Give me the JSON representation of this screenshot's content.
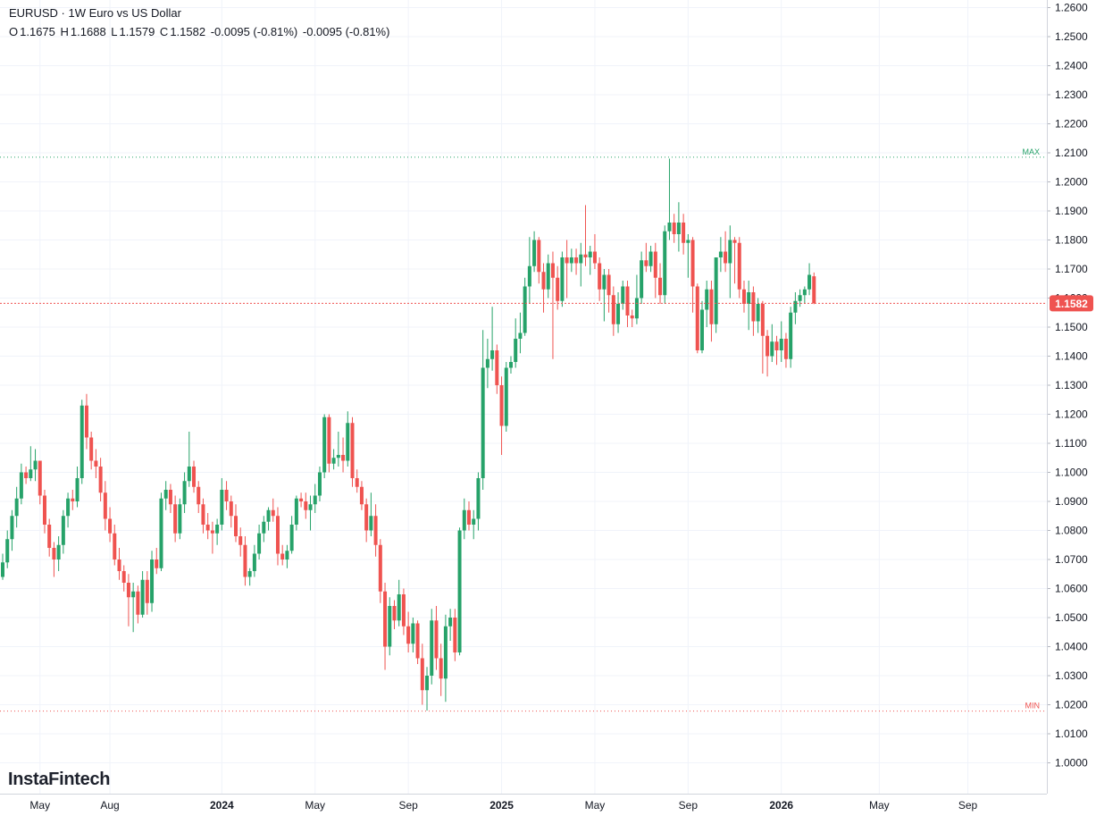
{
  "header": {
    "symbol": "EURUSD",
    "separator": "·",
    "description": "1W Euro vs US Dollar",
    "ohlc": {
      "o_label": "O",
      "o_value": "1.1675",
      "h_label": "H",
      "h_value": "1.1688",
      "l_label": "L",
      "l_value": "1.1579",
      "c_label": "C",
      "c_value": "1.1582",
      "change": "-0.0095 (-0.81%)",
      "change2": "-0.0095 (-0.81%)"
    }
  },
  "logo": {
    "text": "InstaFintech"
  },
  "colors": {
    "up": "#26a269",
    "down": "#ef5350",
    "grid": "#f0f3fa",
    "max_line": "#26a269",
    "min_line": "#ef5350",
    "last_price": "#ef5350",
    "text": "#131722"
  },
  "chart_data": {
    "type": "candlestick",
    "title": "EURUSD · 1W Euro vs US Dollar",
    "y_axis": {
      "ticks": [
        "1.2600",
        "1.2500",
        "1.2400",
        "1.2300",
        "1.2200",
        "1.2100",
        "1.2000",
        "1.1900",
        "1.1800",
        "1.1700",
        "1.1600",
        "1.1500",
        "1.1400",
        "1.1300",
        "1.1200",
        "1.1100",
        "1.1000",
        "1.0900",
        "1.0800",
        "1.0700",
        "1.0600",
        "1.0500",
        "1.0400",
        "1.0300",
        "1.0200",
        "1.0100",
        "1.0000"
      ],
      "range": [
        0.992,
        1.2625
      ]
    },
    "x_axis": {
      "labels": [
        "May",
        "Aug",
        "2024",
        "May",
        "Sep",
        "2025",
        "May",
        "Sep",
        "2026",
        "May",
        "Sep"
      ],
      "bold_labels": [
        "2024",
        "2025",
        "2026"
      ],
      "label_bar_index": [
        8,
        23,
        47,
        67,
        87,
        107,
        127,
        147,
        167,
        188,
        207
      ]
    },
    "markers": {
      "max": {
        "label": "MAX",
        "value": 1.2085
      },
      "min": {
        "label": "MIN",
        "value": 1.0178
      }
    },
    "last_price": {
      "label": "1.1582",
      "value": 1.1582
    },
    "candles": [
      [
        1.064,
        1.072,
        1.063,
        1.069
      ],
      [
        1.069,
        1.08,
        1.067,
        1.077
      ],
      [
        1.077,
        1.087,
        1.073,
        1.085
      ],
      [
        1.085,
        1.095,
        1.081,
        1.091
      ],
      [
        1.091,
        1.103,
        1.089,
        1.1
      ],
      [
        1.1,
        1.102,
        1.096,
        1.098
      ],
      [
        1.098,
        1.109,
        1.097,
        1.101
      ],
      [
        1.101,
        1.108,
        1.097,
        1.104
      ],
      [
        1.104,
        1.104,
        1.089,
        1.092
      ],
      [
        1.092,
        1.094,
        1.079,
        1.082
      ],
      [
        1.082,
        1.084,
        1.071,
        1.074
      ],
      [
        1.074,
        1.076,
        1.064,
        1.07
      ],
      [
        1.07,
        1.078,
        1.066,
        1.075
      ],
      [
        1.075,
        1.087,
        1.072,
        1.085
      ],
      [
        1.085,
        1.093,
        1.081,
        1.091
      ],
      [
        1.091,
        1.094,
        1.087,
        1.09
      ],
      [
        1.09,
        1.102,
        1.088,
        1.098
      ],
      [
        1.098,
        1.125,
        1.096,
        1.123
      ],
      [
        1.123,
        1.127,
        1.108,
        1.112
      ],
      [
        1.112,
        1.114,
        1.101,
        1.104
      ],
      [
        1.104,
        1.108,
        1.098,
        1.102
      ],
      [
        1.102,
        1.105,
        1.09,
        1.093
      ],
      [
        1.093,
        1.097,
        1.08,
        1.084
      ],
      [
        1.084,
        1.088,
        1.076,
        1.079
      ],
      [
        1.079,
        1.082,
        1.068,
        1.07
      ],
      [
        1.07,
        1.074,
        1.063,
        1.066
      ],
      [
        1.066,
        1.068,
        1.059,
        1.062
      ],
      [
        1.062,
        1.065,
        1.047,
        1.057
      ],
      [
        1.057,
        1.062,
        1.045,
        1.059
      ],
      [
        1.059,
        1.061,
        1.048,
        1.051
      ],
      [
        1.051,
        1.066,
        1.05,
        1.063
      ],
      [
        1.063,
        1.066,
        1.051,
        1.055
      ],
      [
        1.055,
        1.073,
        1.052,
        1.07
      ],
      [
        1.07,
        1.074,
        1.065,
        1.067
      ],
      [
        1.067,
        1.093,
        1.066,
        1.091
      ],
      [
        1.091,
        1.097,
        1.087,
        1.094
      ],
      [
        1.094,
        1.096,
        1.086,
        1.089
      ],
      [
        1.089,
        1.092,
        1.076,
        1.079
      ],
      [
        1.079,
        1.091,
        1.077,
        1.089
      ],
      [
        1.089,
        1.1,
        1.086,
        1.097
      ],
      [
        1.097,
        1.114,
        1.095,
        1.102
      ],
      [
        1.102,
        1.104,
        1.093,
        1.095
      ],
      [
        1.095,
        1.097,
        1.086,
        1.089
      ],
      [
        1.089,
        1.091,
        1.079,
        1.082
      ],
      [
        1.082,
        1.086,
        1.077,
        1.08
      ],
      [
        1.08,
        1.083,
        1.072,
        1.079
      ],
      [
        1.079,
        1.084,
        1.075,
        1.082
      ],
      [
        1.082,
        1.098,
        1.08,
        1.094
      ],
      [
        1.094,
        1.097,
        1.087,
        1.09
      ],
      [
        1.09,
        1.092,
        1.081,
        1.085
      ],
      [
        1.085,
        1.089,
        1.076,
        1.078
      ],
      [
        1.078,
        1.081,
        1.071,
        1.075
      ],
      [
        1.075,
        1.078,
        1.061,
        1.064
      ],
      [
        1.064,
        1.067,
        1.061,
        1.066
      ],
      [
        1.066,
        1.075,
        1.064,
        1.072
      ],
      [
        1.072,
        1.082,
        1.07,
        1.079
      ],
      [
        1.079,
        1.085,
        1.076,
        1.083
      ],
      [
        1.083,
        1.088,
        1.08,
        1.087
      ],
      [
        1.087,
        1.091,
        1.083,
        1.085
      ],
      [
        1.085,
        1.088,
        1.068,
        1.072
      ],
      [
        1.072,
        1.075,
        1.068,
        1.07
      ],
      [
        1.07,
        1.075,
        1.067,
        1.073
      ],
      [
        1.073,
        1.085,
        1.072,
        1.082
      ],
      [
        1.082,
        1.092,
        1.08,
        1.091
      ],
      [
        1.091,
        1.093,
        1.088,
        1.09
      ],
      [
        1.09,
        1.093,
        1.084,
        1.087
      ],
      [
        1.087,
        1.092,
        1.08,
        1.089
      ],
      [
        1.089,
        1.096,
        1.086,
        1.092
      ],
      [
        1.092,
        1.102,
        1.09,
        1.1
      ],
      [
        1.1,
        1.12,
        1.098,
        1.119
      ],
      [
        1.119,
        1.12,
        1.1,
        1.103
      ],
      [
        1.103,
        1.108,
        1.101,
        1.105
      ],
      [
        1.105,
        1.114,
        1.102,
        1.106
      ],
      [
        1.106,
        1.112,
        1.1,
        1.104
      ],
      [
        1.104,
        1.121,
        1.102,
        1.117
      ],
      [
        1.117,
        1.119,
        1.095,
        1.098
      ],
      [
        1.098,
        1.101,
        1.093,
        1.095
      ],
      [
        1.095,
        1.097,
        1.087,
        1.089
      ],
      [
        1.089,
        1.091,
        1.076,
        1.08
      ],
      [
        1.08,
        1.093,
        1.078,
        1.085
      ],
      [
        1.085,
        1.089,
        1.071,
        1.075
      ],
      [
        1.075,
        1.077,
        1.055,
        1.059
      ],
      [
        1.059,
        1.062,
        1.032,
        1.04
      ],
      [
        1.04,
        1.057,
        1.037,
        1.054
      ],
      [
        1.054,
        1.056,
        1.046,
        1.049
      ],
      [
        1.049,
        1.063,
        1.047,
        1.058
      ],
      [
        1.058,
        1.06,
        1.044,
        1.047
      ],
      [
        1.047,
        1.052,
        1.038,
        1.041
      ],
      [
        1.041,
        1.05,
        1.038,
        1.048
      ],
      [
        1.048,
        1.049,
        1.034,
        1.036
      ],
      [
        1.036,
        1.041,
        1.02,
        1.025
      ],
      [
        1.025,
        1.033,
        1.018,
        1.03
      ],
      [
        1.03,
        1.053,
        1.027,
        1.049
      ],
      [
        1.049,
        1.054,
        1.032,
        1.036
      ],
      [
        1.036,
        1.041,
        1.023,
        1.029
      ],
      [
        1.029,
        1.051,
        1.021,
        1.047
      ],
      [
        1.047,
        1.053,
        1.042,
        1.05
      ],
      [
        1.05,
        1.053,
        1.035,
        1.038
      ],
      [
        1.038,
        1.081,
        1.037,
        1.08
      ],
      [
        1.08,
        1.091,
        1.077,
        1.087
      ],
      [
        1.087,
        1.09,
        1.08,
        1.082
      ],
      [
        1.082,
        1.087,
        1.077,
        1.084
      ],
      [
        1.084,
        1.1,
        1.08,
        1.098
      ],
      [
        1.098,
        1.149,
        1.094,
        1.136
      ],
      [
        1.136,
        1.146,
        1.129,
        1.139
      ],
      [
        1.139,
        1.157,
        1.135,
        1.142
      ],
      [
        1.142,
        1.144,
        1.127,
        1.13
      ],
      [
        1.13,
        1.133,
        1.106,
        1.116
      ],
      [
        1.116,
        1.138,
        1.114,
        1.136
      ],
      [
        1.136,
        1.14,
        1.134,
        1.138
      ],
      [
        1.138,
        1.153,
        1.136,
        1.146
      ],
      [
        1.146,
        1.155,
        1.141,
        1.148
      ],
      [
        1.148,
        1.167,
        1.147,
        1.164
      ],
      [
        1.164,
        1.181,
        1.158,
        1.171
      ],
      [
        1.171,
        1.183,
        1.169,
        1.18
      ],
      [
        1.18,
        1.181,
        1.165,
        1.169
      ],
      [
        1.169,
        1.172,
        1.155,
        1.163
      ],
      [
        1.163,
        1.175,
        1.16,
        1.172
      ],
      [
        1.172,
        1.176,
        1.139,
        1.167
      ],
      [
        1.167,
        1.171,
        1.156,
        1.159
      ],
      [
        1.159,
        1.176,
        1.157,
        1.174
      ],
      [
        1.174,
        1.18,
        1.16,
        1.172
      ],
      [
        1.172,
        1.177,
        1.169,
        1.174
      ],
      [
        1.174,
        1.177,
        1.168,
        1.172
      ],
      [
        1.172,
        1.179,
        1.164,
        1.175
      ],
      [
        1.175,
        1.192,
        1.171,
        1.174
      ],
      [
        1.174,
        1.178,
        1.168,
        1.176
      ],
      [
        1.176,
        1.182,
        1.17,
        1.172
      ],
      [
        1.172,
        1.174,
        1.159,
        1.163
      ],
      [
        1.163,
        1.17,
        1.152,
        1.168
      ],
      [
        1.168,
        1.17,
        1.155,
        1.161
      ],
      [
        1.161,
        1.164,
        1.147,
        1.151
      ],
      [
        1.151,
        1.162,
        1.148,
        1.158
      ],
      [
        1.158,
        1.166,
        1.156,
        1.164
      ],
      [
        1.164,
        1.166,
        1.15,
        1.154
      ],
      [
        1.154,
        1.156,
        1.15,
        1.153
      ],
      [
        1.153,
        1.168,
        1.151,
        1.16
      ],
      [
        1.16,
        1.176,
        1.158,
        1.173
      ],
      [
        1.173,
        1.179,
        1.169,
        1.171
      ],
      [
        1.171,
        1.178,
        1.169,
        1.176
      ],
      [
        1.176,
        1.179,
        1.16,
        1.167
      ],
      [
        1.167,
        1.172,
        1.158,
        1.161
      ],
      [
        1.161,
        1.185,
        1.158,
        1.183
      ],
      [
        1.183,
        1.208,
        1.18,
        1.186
      ],
      [
        1.186,
        1.189,
        1.179,
        1.182
      ],
      [
        1.182,
        1.193,
        1.176,
        1.186
      ],
      [
        1.186,
        1.189,
        1.175,
        1.179
      ],
      [
        1.179,
        1.182,
        1.167,
        1.18
      ],
      [
        1.18,
        1.181,
        1.155,
        1.164
      ],
      [
        1.164,
        1.165,
        1.141,
        1.142
      ],
      [
        1.142,
        1.159,
        1.141,
        1.156
      ],
      [
        1.156,
        1.166,
        1.15,
        1.163
      ],
      [
        1.163,
        1.166,
        1.145,
        1.151
      ],
      [
        1.151,
        1.173,
        1.148,
        1.174
      ],
      [
        1.174,
        1.181,
        1.169,
        1.176
      ],
      [
        1.176,
        1.183,
        1.169,
        1.172
      ],
      [
        1.172,
        1.185,
        1.16,
        1.18
      ],
      [
        1.18,
        1.181,
        1.165,
        1.179
      ],
      [
        1.179,
        1.181,
        1.16,
        1.163
      ],
      [
        1.163,
        1.166,
        1.155,
        1.158
      ],
      [
        1.158,
        1.166,
        1.149,
        1.162
      ],
      [
        1.162,
        1.164,
        1.147,
        1.152
      ],
      [
        1.152,
        1.16,
        1.148,
        1.158
      ],
      [
        1.158,
        1.159,
        1.134,
        1.147
      ],
      [
        1.147,
        1.149,
        1.133,
        1.14
      ],
      [
        1.14,
        1.151,
        1.138,
        1.145
      ],
      [
        1.145,
        1.147,
        1.137,
        1.142
      ],
      [
        1.142,
        1.152,
        1.138,
        1.146
      ],
      [
        1.146,
        1.148,
        1.136,
        1.139
      ],
      [
        1.139,
        1.157,
        1.136,
        1.155
      ],
      [
        1.155,
        1.162,
        1.151,
        1.159
      ],
      [
        1.159,
        1.163,
        1.157,
        1.161
      ],
      [
        1.161,
        1.164,
        1.158,
        1.163
      ],
      [
        1.163,
        1.172,
        1.161,
        1.168
      ],
      [
        1.1675,
        1.1688,
        1.1579,
        1.1582
      ]
    ]
  }
}
